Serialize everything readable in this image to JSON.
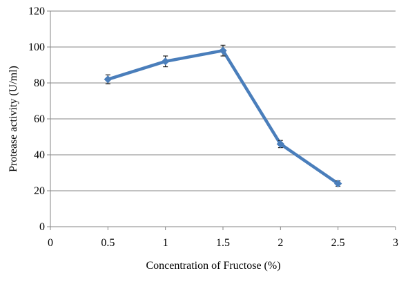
{
  "chart_data": {
    "type": "line",
    "title": "",
    "xlabel": "Concentration of Fructose (%)",
    "ylabel": "Protease activity (U/ml)",
    "xlim": [
      0,
      3
    ],
    "ylim": [
      0,
      120
    ],
    "x_ticks": [
      0,
      0.5,
      1,
      1.5,
      2,
      2.5,
      3
    ],
    "x_tick_labels": [
      "0",
      "0.5",
      "1",
      "1.5",
      "2",
      "2.5",
      "3"
    ],
    "y_ticks": [
      0,
      20,
      40,
      60,
      80,
      100,
      120
    ],
    "y_tick_labels": [
      "0",
      "20",
      "40",
      "60",
      "80",
      "100",
      "120"
    ],
    "grid": "horizontal",
    "legend": "none",
    "marker": "diamond",
    "series": [
      {
        "color": "#4a7ebb",
        "x": [
          0.5,
          1,
          1.5,
          2,
          2.5
        ],
        "y": [
          82,
          92,
          98,
          46,
          24
        ],
        "error": [
          2.5,
          3,
          3,
          2,
          1.5
        ]
      }
    ]
  }
}
